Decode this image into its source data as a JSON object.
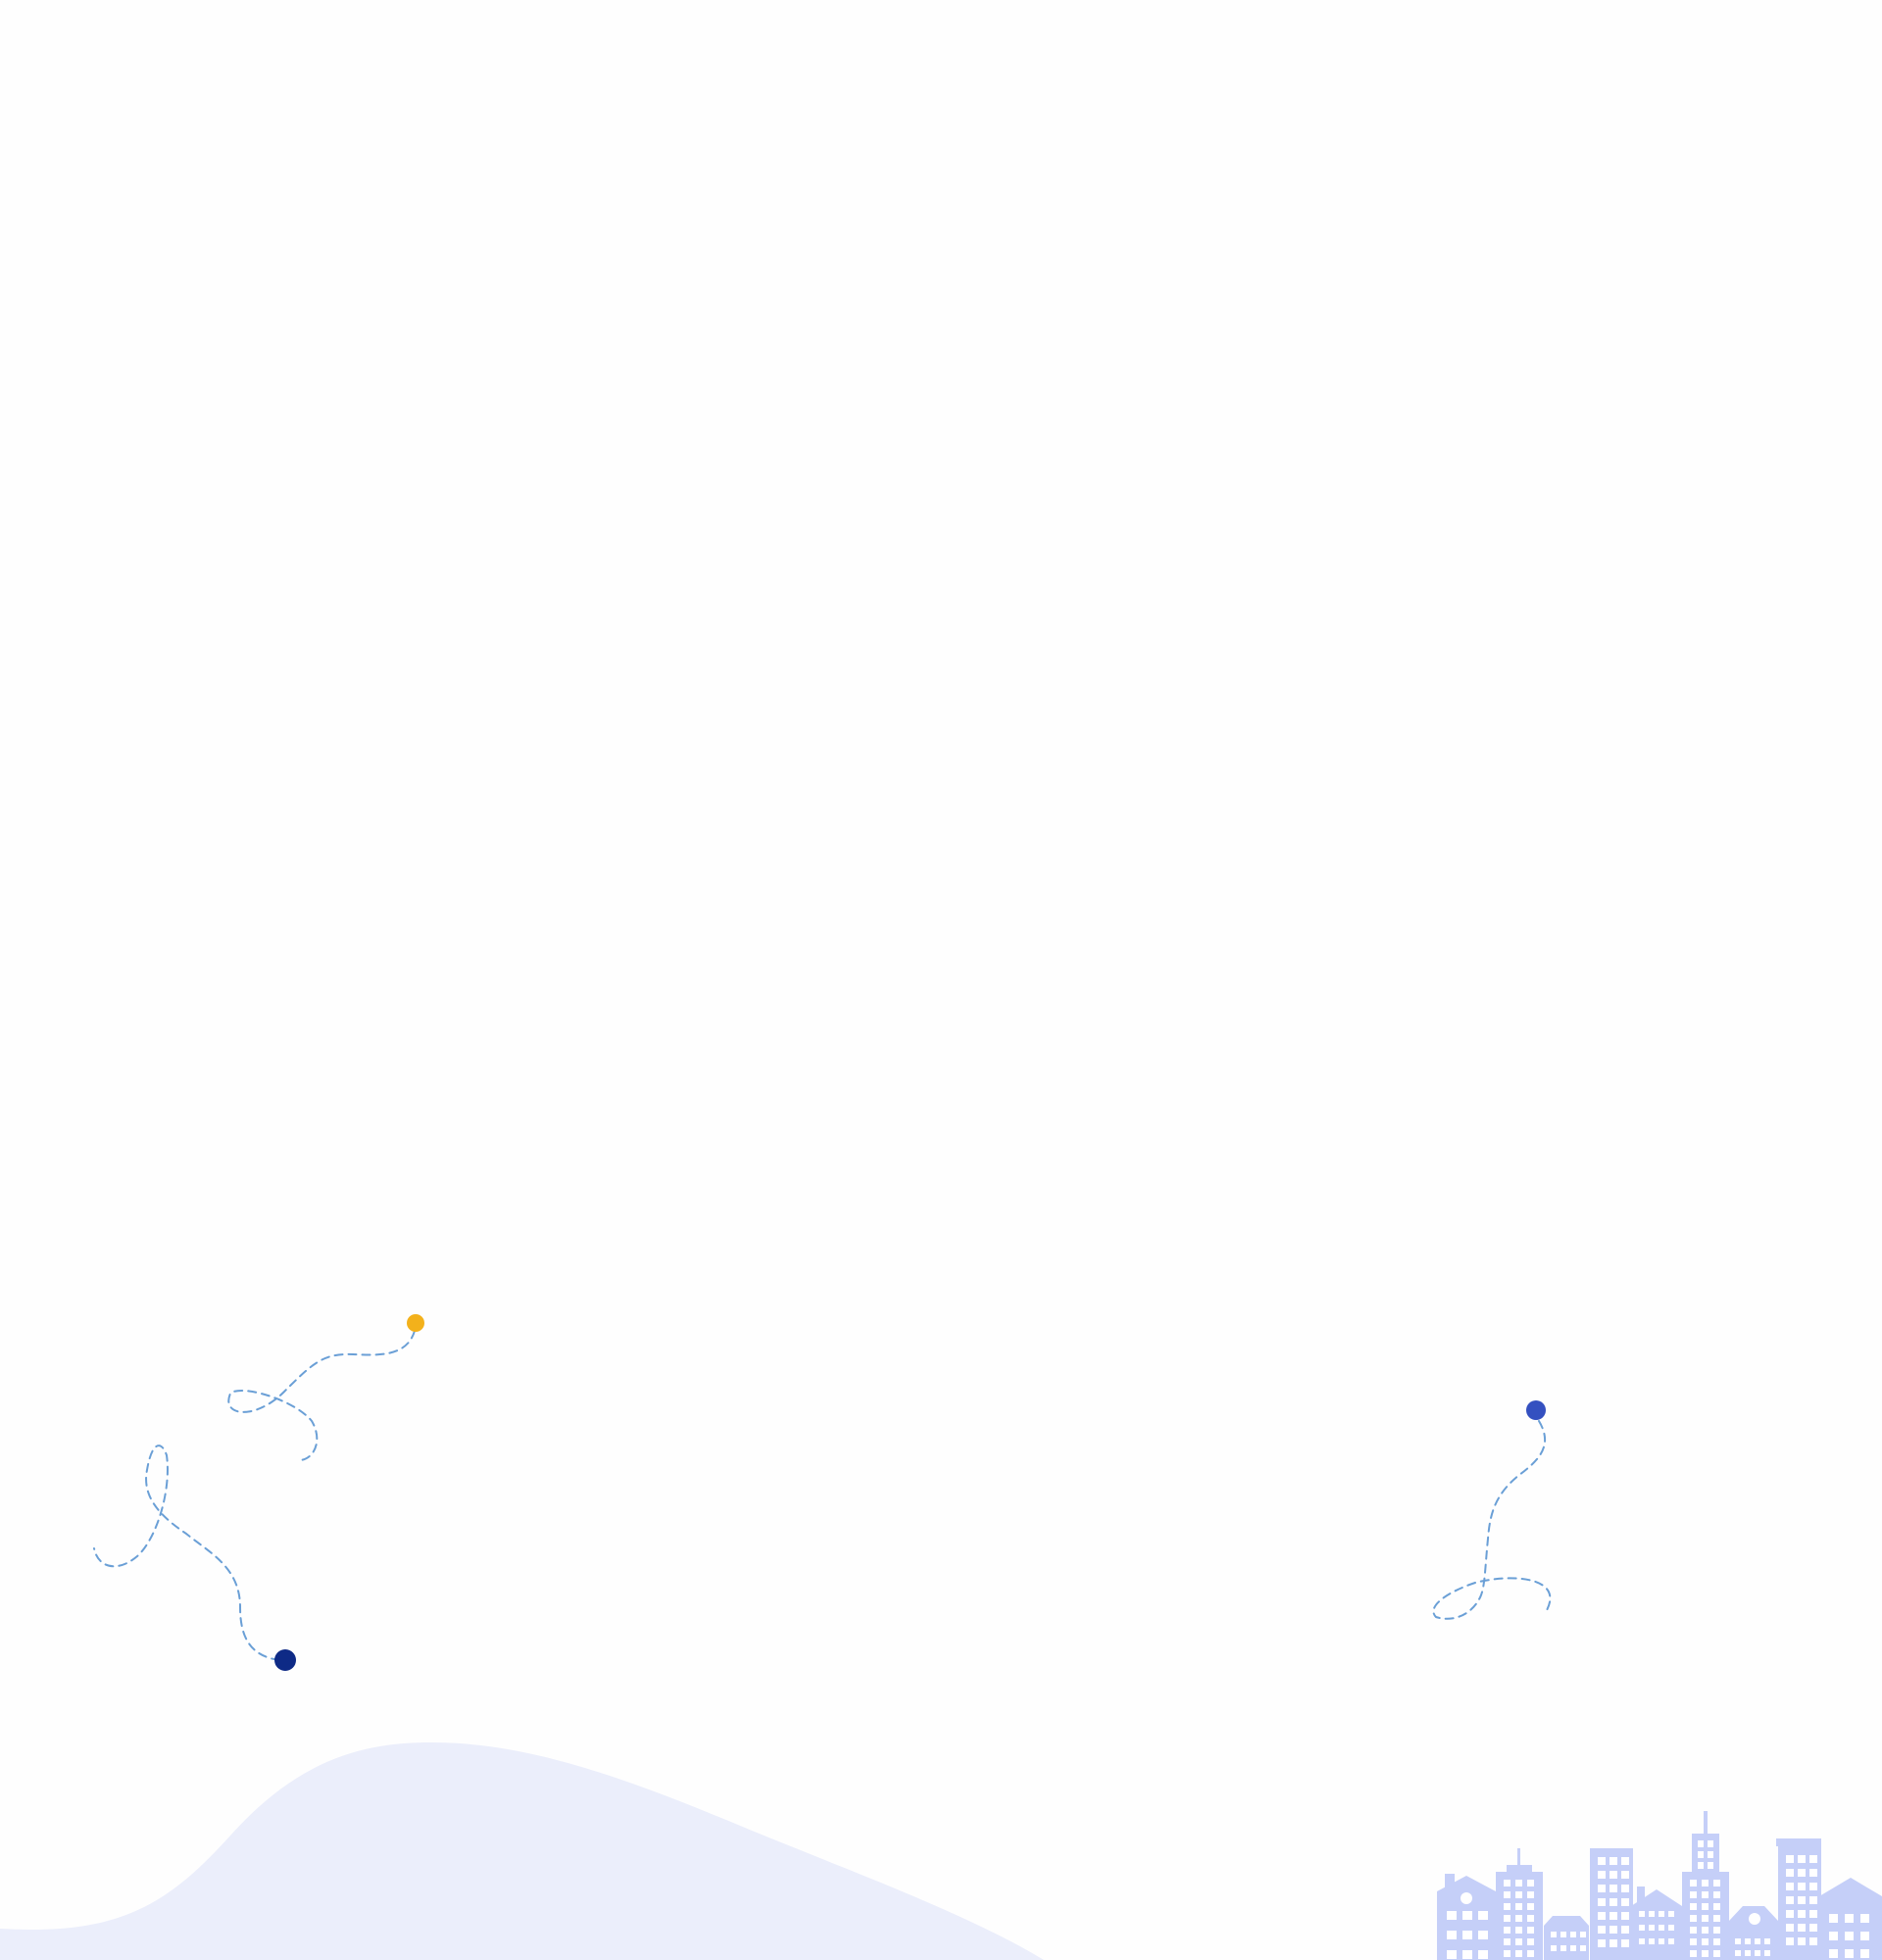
{
  "colors": {
    "background": "#fefefe",
    "hill": "#ebeefb",
    "skyline": "#c5cff8",
    "skyline_windows": "#ffffff",
    "trail": "#6a9fd6",
    "dot_yellow": "#f3b11b",
    "dot_navy": "#0e2a86",
    "dot_blue": "#3450c0"
  },
  "decorations": {
    "hill": "wave-shape",
    "skyline": "city-skyline-icon",
    "dots": [
      "yellow-dot",
      "navy-dot",
      "blue-dot"
    ],
    "trails": [
      "dashed-trail"
    ]
  }
}
